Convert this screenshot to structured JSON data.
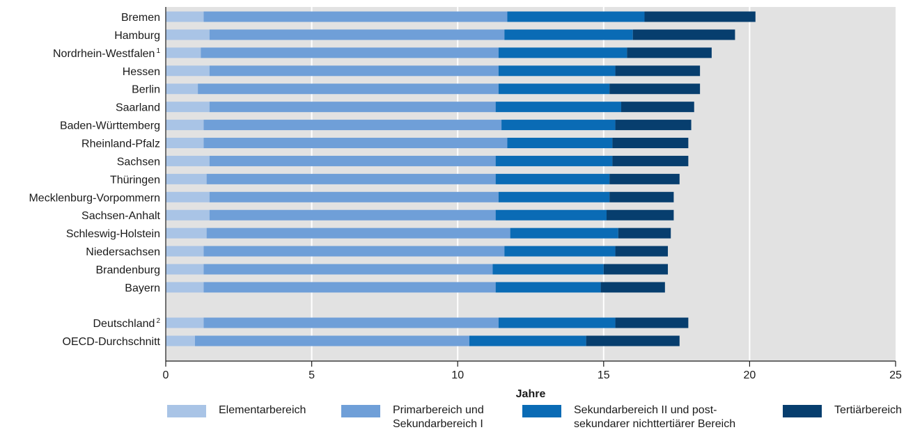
{
  "chart_data": {
    "type": "bar",
    "orientation": "horizontal",
    "stacked": true,
    "title": "",
    "xlabel": "Jahre",
    "ylabel": "",
    "xlim": [
      0,
      25
    ],
    "xticks": [
      0,
      5,
      10,
      15,
      20,
      25
    ],
    "grid": true,
    "legend_position": "bottom",
    "categories": [
      {
        "label": "Bremen",
        "sup": ""
      },
      {
        "label": "Hamburg",
        "sup": ""
      },
      {
        "label": "Nordrhein-Westfalen",
        "sup": "1"
      },
      {
        "label": "Hessen",
        "sup": ""
      },
      {
        "label": "Berlin",
        "sup": ""
      },
      {
        "label": "Saarland",
        "sup": ""
      },
      {
        "label": "Baden-Württemberg",
        "sup": ""
      },
      {
        "label": "Rheinland-Pfalz",
        "sup": ""
      },
      {
        "label": "Sachsen",
        "sup": ""
      },
      {
        "label": "Thüringen",
        "sup": ""
      },
      {
        "label": "Mecklenburg-Vorpommern",
        "sup": ""
      },
      {
        "label": "Sachsen-Anhalt",
        "sup": ""
      },
      {
        "label": "Schleswig-Holstein",
        "sup": ""
      },
      {
        "label": "Niedersachsen",
        "sup": ""
      },
      {
        "label": "Brandenburg",
        "sup": ""
      },
      {
        "label": "Bayern",
        "sup": ""
      },
      {
        "label": "Deutschland",
        "sup": "2"
      },
      {
        "label": "OECD-Durchschnitt",
        "sup": ""
      }
    ],
    "series": [
      {
        "name": "Elementarbereich",
        "color": "#a9c4e6",
        "values": [
          1.3,
          1.5,
          1.2,
          1.5,
          1.1,
          1.5,
          1.3,
          1.3,
          1.5,
          1.4,
          1.5,
          1.5,
          1.4,
          1.3,
          1.3,
          1.3,
          1.3,
          1.0
        ]
      },
      {
        "name": "Primarbereich und\nSekundarbereich I",
        "color": "#6f9fd8",
        "values": [
          10.4,
          10.1,
          10.2,
          9.9,
          10.3,
          9.8,
          10.2,
          10.4,
          9.8,
          9.9,
          9.9,
          9.8,
          10.4,
          10.3,
          9.9,
          10.0,
          10.1,
          9.4
        ]
      },
      {
        "name": "Sekundarbereich II und post-\nsekundarer nichttertiärer Bereich",
        "color": "#0a6bb5",
        "values": [
          4.7,
          4.4,
          4.4,
          4.0,
          3.8,
          4.3,
          3.9,
          3.6,
          4.0,
          3.9,
          3.8,
          3.8,
          3.7,
          3.8,
          3.8,
          3.6,
          4.0,
          4.0
        ]
      },
      {
        "name": "Tertiärbereich",
        "color": "#073e6e",
        "values": [
          3.8,
          3.5,
          2.9,
          2.9,
          3.1,
          2.5,
          2.6,
          2.6,
          2.6,
          2.4,
          2.2,
          2.3,
          1.8,
          1.8,
          2.2,
          2.2,
          2.5,
          3.2
        ]
      }
    ]
  }
}
